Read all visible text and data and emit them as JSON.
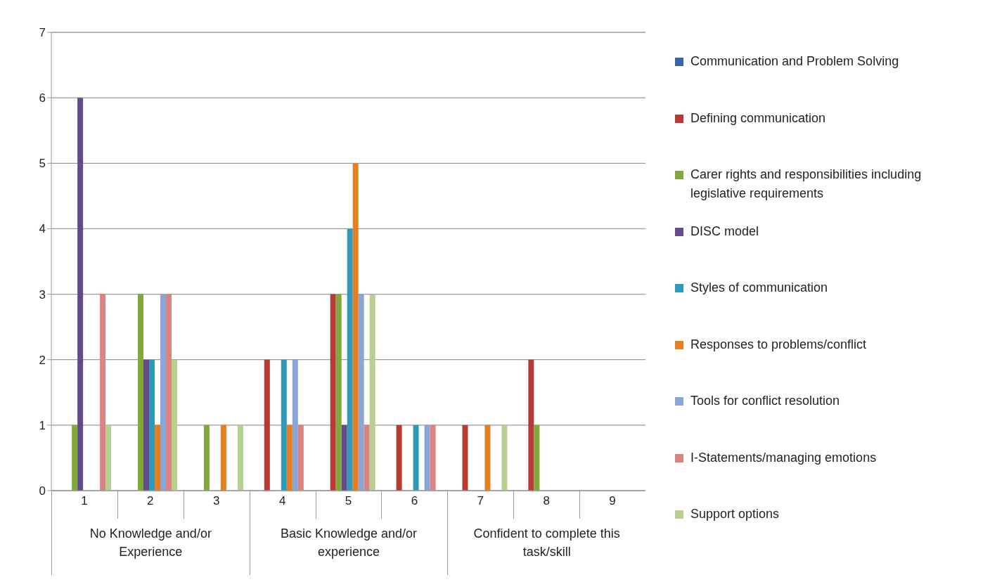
{
  "chart_data": {
    "type": "bar",
    "categories": [
      "1",
      "2",
      "3",
      "4",
      "5",
      "6",
      "7",
      "8",
      "9"
    ],
    "series": [
      {
        "name": "Communication and Problem Solving",
        "color": "#3a66a8",
        "values": [
          0,
          0,
          0,
          0,
          0,
          0,
          0,
          0,
          0
        ]
      },
      {
        "name": "Defining communication",
        "color": "#b83a35",
        "values": [
          0,
          0,
          0,
          2,
          3,
          1,
          1,
          2,
          0
        ]
      },
      {
        "name": "Carer rights and responsibilities including legislative requirements",
        "color": "#80a83a",
        "values": [
          1,
          3,
          1,
          0,
          3,
          0,
          0,
          1,
          0
        ]
      },
      {
        "name": "DISC model",
        "color": "#634a8a",
        "values": [
          6,
          2,
          0,
          0,
          1,
          0,
          0,
          0,
          0
        ]
      },
      {
        "name": "Styles of communication",
        "color": "#2e9ab8",
        "values": [
          0,
          2,
          0,
          2,
          4,
          1,
          0,
          0,
          0
        ]
      },
      {
        "name": "Responses to problems/conflict",
        "color": "#e67e22",
        "values": [
          0,
          1,
          1,
          1,
          5,
          0,
          1,
          0,
          0
        ]
      },
      {
        "name": "Tools for conflict resolution",
        "color": "#8aa6d6",
        "values": [
          0,
          3,
          0,
          2,
          3,
          1,
          0,
          0,
          0
        ]
      },
      {
        "name": "I-Statements/managing emotions",
        "color": "#d98482",
        "values": [
          3,
          3,
          0,
          1,
          1,
          1,
          0,
          0,
          0
        ]
      },
      {
        "name": "Support options",
        "color": "#b5d08f",
        "values": [
          1,
          2,
          1,
          0,
          3,
          0,
          1,
          0,
          0
        ]
      }
    ],
    "annotations": [
      "No Knowledge and/or Experience",
      "Basic Knowledge and/or experience",
      "Confident to complete this task/skill"
    ],
    "ylim": [
      0,
      7
    ],
    "yticks": [
      0,
      1,
      2,
      3,
      4,
      5,
      6,
      7
    ],
    "grid": "y",
    "legend": "right"
  }
}
